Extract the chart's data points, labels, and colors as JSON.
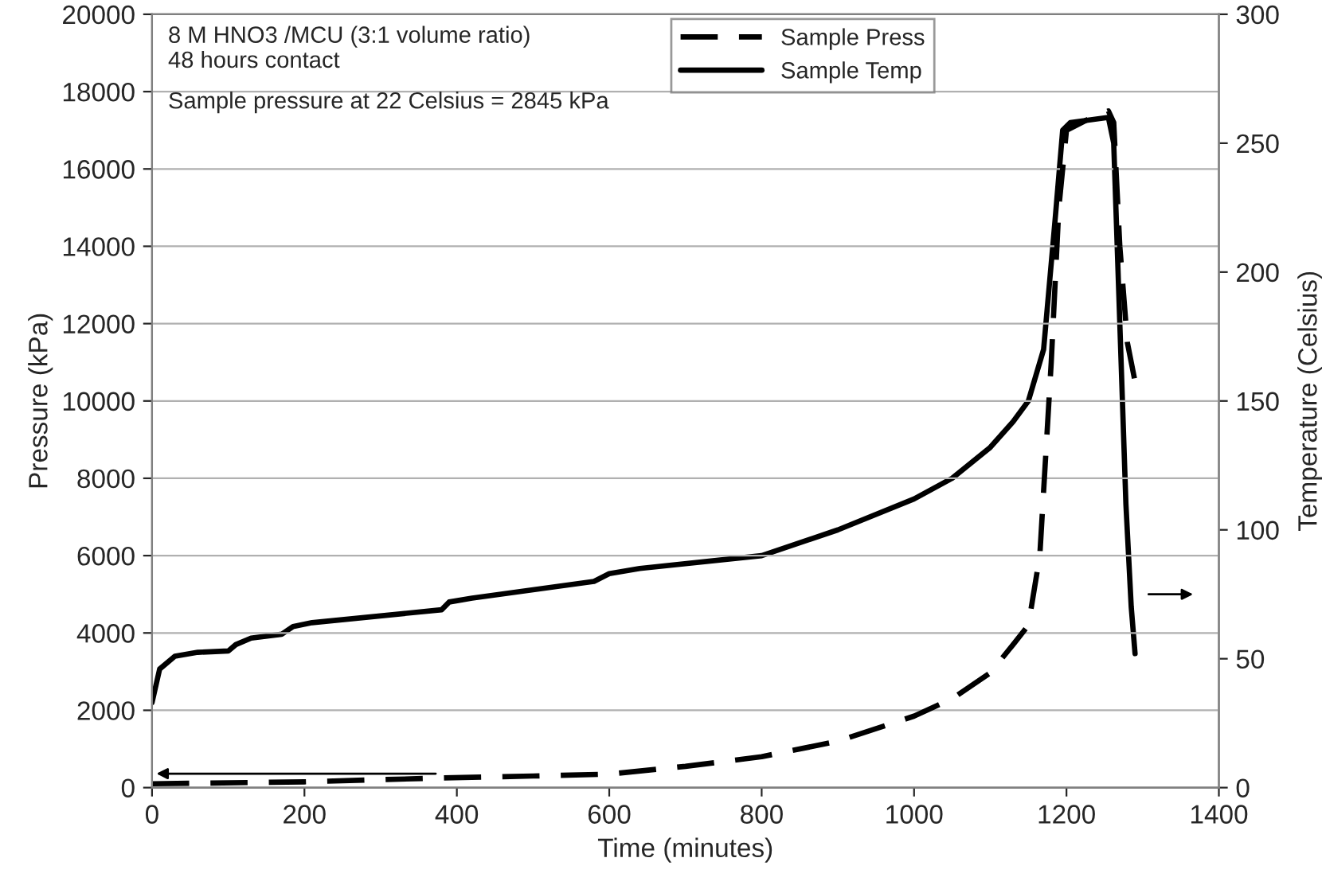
{
  "chart_data": {
    "type": "line",
    "xlabel": "Time (minutes)",
    "ylabel": "Pressure (kPa)",
    "y2label": "Temperature (Celsius)",
    "annotations": [
      "8 M HNO3 /MCU (3:1 volume ratio)\n48 hours contact",
      "Sample pressure at 22 Celsius = 2845 kPa"
    ],
    "xlim": [
      0,
      1400
    ],
    "xticks": [
      0,
      200,
      400,
      600,
      800,
      1000,
      1200,
      1400
    ],
    "ylim": [
      0,
      20000
    ],
    "yticks": [
      0,
      2000,
      4000,
      6000,
      8000,
      10000,
      12000,
      14000,
      16000,
      18000,
      20000
    ],
    "y2lim": [
      0,
      300
    ],
    "y2ticks": [
      0,
      50,
      100,
      150,
      200,
      250,
      300
    ],
    "grid": "y",
    "legend": "top",
    "series": [
      {
        "name": "Sample Press",
        "color": "#000000",
        "line_style": "dashed",
        "x": [
          0,
          200,
          380,
          500,
          600,
          700,
          800,
          900,
          1000,
          1050,
          1100,
          1130,
          1150,
          1165,
          1180,
          1190,
          1200,
          1230,
          1255,
          1262,
          1270,
          1280,
          1290
        ],
        "values": [
          100,
          150,
          250,
          300,
          350,
          550,
          800,
          1200,
          1850,
          2300,
          2970,
          3700,
          4200,
          6000,
          11000,
          15000,
          17000,
          17300,
          17500,
          17200,
          14000,
          11500,
          10500
        ]
      },
      {
        "name": "Sample Temp",
        "color": "#000000",
        "line_style": "solid",
        "axis": "y2",
        "x": [
          0,
          10,
          30,
          60,
          100,
          110,
          130,
          170,
          185,
          210,
          380,
          390,
          420,
          580,
          600,
          640,
          800,
          900,
          1000,
          1050,
          1100,
          1130,
          1150,
          1170,
          1185,
          1195,
          1205,
          1255,
          1262,
          1270,
          1278,
          1285,
          1290
        ],
        "values": [
          33,
          46,
          51,
          52.5,
          53,
          55.5,
          58,
          59.5,
          62.5,
          64,
          69,
          72,
          73.5,
          80,
          83,
          85,
          90,
          100,
          112,
          120,
          132,
          142,
          150,
          170,
          220,
          255,
          258,
          260,
          250,
          180,
          110,
          70,
          52
        ]
      }
    ]
  }
}
